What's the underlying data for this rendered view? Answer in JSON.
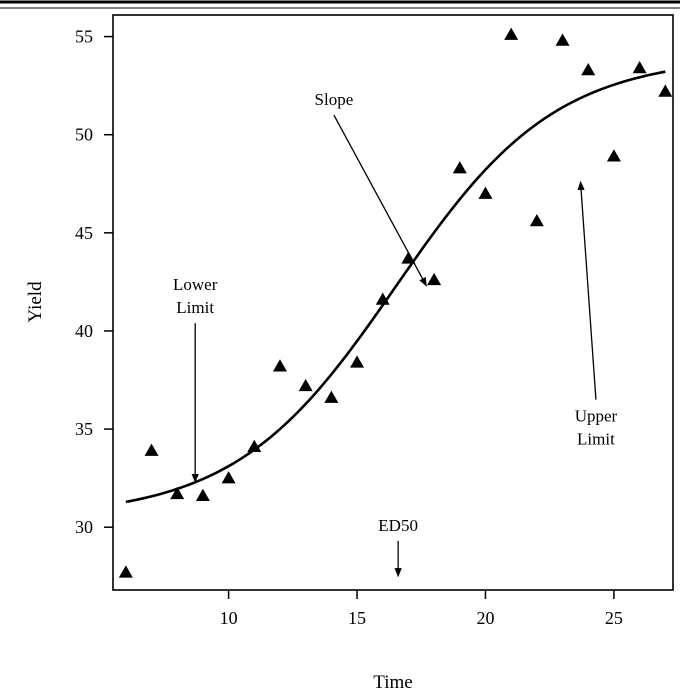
{
  "chart_data": {
    "type": "scatter",
    "xlabel": "Time",
    "ylabel": "Yield",
    "xlim": [
      5.5,
      27.3
    ],
    "ylim": [
      26.8,
      56.1
    ],
    "xticks": [
      10,
      15,
      20,
      25
    ],
    "yticks": [
      30,
      35,
      40,
      45,
      50,
      55
    ],
    "x_tick_labels": [
      "10",
      "15",
      "20",
      "25"
    ],
    "y_tick_labels": [
      "30",
      "35",
      "40",
      "45",
      "50",
      "55"
    ],
    "grid": false,
    "marker": "triangle",
    "points": [
      {
        "x": 6,
        "y": 27.7
      },
      {
        "x": 7,
        "y": 33.9
      },
      {
        "x": 8,
        "y": 31.7
      },
      {
        "x": 9,
        "y": 31.6
      },
      {
        "x": 10,
        "y": 32.5
      },
      {
        "x": 11,
        "y": 34.1
      },
      {
        "x": 12,
        "y": 38.2
      },
      {
        "x": 13,
        "y": 37.2
      },
      {
        "x": 14,
        "y": 36.6
      },
      {
        "x": 15,
        "y": 38.4
      },
      {
        "x": 16,
        "y": 41.6
      },
      {
        "x": 17,
        "y": 43.7
      },
      {
        "x": 18,
        "y": 42.6
      },
      {
        "x": 19,
        "y": 48.3
      },
      {
        "x": 20,
        "y": 47.0
      },
      {
        "x": 21,
        "y": 55.1
      },
      {
        "x": 22,
        "y": 45.6
      },
      {
        "x": 23,
        "y": 54.8
      },
      {
        "x": 24,
        "y": 53.3
      },
      {
        "x": 25,
        "y": 48.9
      },
      {
        "x": 26,
        "y": 53.4
      },
      {
        "x": 27,
        "y": 52.2
      }
    ],
    "fitted_curve": {
      "model": "logistic",
      "lower_limit": 30.5,
      "upper_limit": 54.0,
      "ed50": 16.5,
      "slope": 0.32,
      "x_range": [
        6,
        27
      ]
    },
    "annotations": [
      {
        "label_lines": [
          "Slope"
        ],
        "arrow_from": [
          14.1,
          51.0
        ],
        "arrow_to": [
          17.7,
          42.3
        ]
      },
      {
        "label_lines": [
          "Lower",
          "Limit"
        ],
        "arrow_from": [
          8.7,
          40.4
        ],
        "arrow_to": [
          8.7,
          32.3
        ]
      },
      {
        "label_lines": [
          "ED50"
        ],
        "arrow_from": [
          16.6,
          29.3
        ],
        "arrow_to": [
          16.6,
          27.5
        ]
      },
      {
        "label_lines": [
          "Upper",
          "Limit"
        ],
        "arrow_from": [
          24.3,
          36.5
        ],
        "arrow_to": [
          23.7,
          47.6
        ]
      }
    ]
  }
}
